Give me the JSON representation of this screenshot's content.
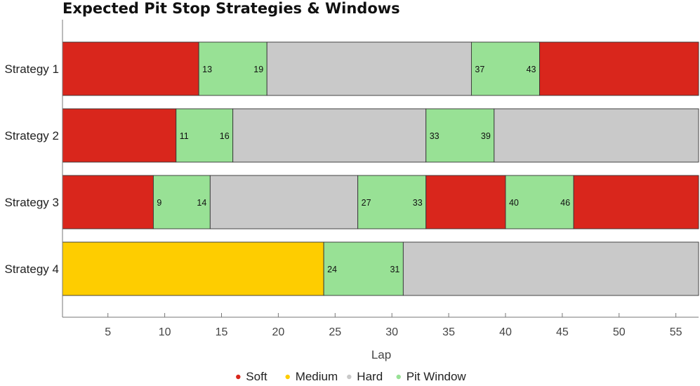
{
  "chart_data": {
    "type": "bar",
    "orientation": "horizontal-stacked-timeline",
    "title": "Expected Pit Stop Strategies & Windows",
    "xlabel": "Lap",
    "ylabel": "",
    "xlim": [
      1,
      57
    ],
    "x_ticks": [
      5,
      10,
      15,
      20,
      25,
      30,
      35,
      40,
      45,
      50,
      55
    ],
    "categories": [
      "Strategy 1",
      "Strategy 2",
      "Strategy 3",
      "Strategy 4"
    ],
    "colors": {
      "Soft": "#d9261c",
      "Medium": "#fecd00",
      "Hard": "#c9c9c9",
      "Pit Window": "#98e195"
    },
    "legend": {
      "position": "bottom",
      "entries": [
        "Soft",
        "Medium",
        "Hard",
        "Pit Window"
      ]
    },
    "strategies": [
      {
        "name": "Strategy 1",
        "segments": [
          {
            "type": "Soft",
            "start": 1,
            "end": 13
          },
          {
            "type": "Pit Window",
            "start": 13,
            "end": 19,
            "start_label": "13",
            "end_label": "19"
          },
          {
            "type": "Hard",
            "start": 19,
            "end": 37
          },
          {
            "type": "Pit Window",
            "start": 37,
            "end": 43,
            "start_label": "37",
            "end_label": "43"
          },
          {
            "type": "Soft",
            "start": 43,
            "end": 57
          }
        ]
      },
      {
        "name": "Strategy 2",
        "segments": [
          {
            "type": "Soft",
            "start": 1,
            "end": 11
          },
          {
            "type": "Pit Window",
            "start": 11,
            "end": 16,
            "start_label": "11",
            "end_label": "16"
          },
          {
            "type": "Hard",
            "start": 16,
            "end": 33
          },
          {
            "type": "Pit Window",
            "start": 33,
            "end": 39,
            "start_label": "33",
            "end_label": "39"
          },
          {
            "type": "Hard",
            "start": 39,
            "end": 57
          }
        ]
      },
      {
        "name": "Strategy 3",
        "segments": [
          {
            "type": "Soft",
            "start": 1,
            "end": 9
          },
          {
            "type": "Pit Window",
            "start": 9,
            "end": 14,
            "start_label": "9",
            "end_label": "14"
          },
          {
            "type": "Hard",
            "start": 14,
            "end": 27
          },
          {
            "type": "Pit Window",
            "start": 27,
            "end": 33,
            "start_label": "27",
            "end_label": "33"
          },
          {
            "type": "Soft",
            "start": 33,
            "end": 40
          },
          {
            "type": "Pit Window",
            "start": 40,
            "end": 46,
            "start_label": "40",
            "end_label": "46"
          },
          {
            "type": "Soft",
            "start": 46,
            "end": 57
          }
        ]
      },
      {
        "name": "Strategy 4",
        "segments": [
          {
            "type": "Medium",
            "start": 1,
            "end": 24
          },
          {
            "type": "Pit Window",
            "start": 24,
            "end": 31,
            "start_label": "24",
            "end_label": "31"
          },
          {
            "type": "Hard",
            "start": 31,
            "end": 57
          }
        ]
      }
    ]
  }
}
